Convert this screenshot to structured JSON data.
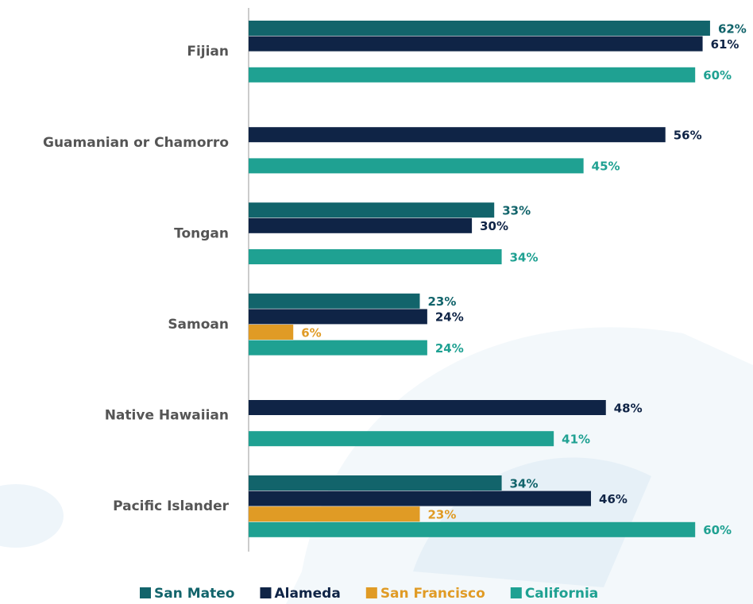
{
  "chart_data": {
    "type": "hbar",
    "categories": [
      "Fijian",
      "Guamanian or Chamorro",
      "Tongan",
      "Samoan",
      "Native Hawaiian",
      "Pacific Islander"
    ],
    "series": [
      {
        "name": "San Mateo",
        "color": "#12646b",
        "values": [
          62,
          null,
          33,
          23,
          null,
          34
        ],
        "value_labels": [
          "62%",
          null,
          "33%",
          "23%",
          null,
          "34%"
        ]
      },
      {
        "name": "Alameda",
        "color": "#0f2446",
        "values": [
          61,
          56,
          30,
          24,
          48,
          46
        ],
        "value_labels": [
          "61%",
          "56%",
          "30%",
          "24%",
          "48%",
          "46%"
        ]
      },
      {
        "name": "San Francisco",
        "color": "#e09b25",
        "values": [
          null,
          null,
          null,
          6,
          null,
          23
        ],
        "value_labels": [
          null,
          null,
          null,
          "6%",
          null,
          "23%"
        ]
      },
      {
        "name": "California",
        "color": "#1fa192",
        "values": [
          60,
          45,
          34,
          24,
          41,
          60
        ],
        "value_labels": [
          "60%",
          "45%",
          "34%",
          "24%",
          "41%",
          "60%"
        ]
      }
    ]
  }
}
